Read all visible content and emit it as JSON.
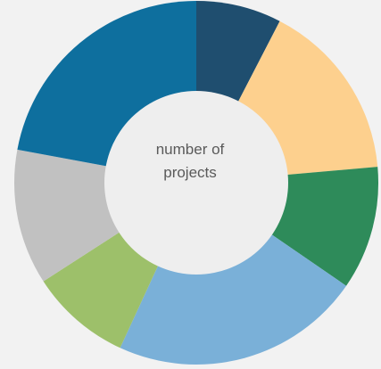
{
  "center_label": {
    "line1": "number of",
    "line2": "projects"
  },
  "colors": {
    "background": "#f2f2f2",
    "hole": "#eeeeee"
  },
  "chart_data": {
    "type": "pie",
    "variant": "donut",
    "start_angle_deg": 0,
    "direction": "clockwise",
    "slices": [
      {
        "value": 8.0,
        "color": "#1f4e6f"
      },
      {
        "value": 16.9,
        "color": "#fdd08e"
      },
      {
        "value": 11.6,
        "color": "#2e8b5a"
      },
      {
        "value": 23.5,
        "color": "#7ab0d8"
      },
      {
        "value": 9.5,
        "color": "#9dc06a"
      },
      {
        "value": 12.7,
        "color": "#c1c1c1"
      },
      {
        "value": 23.3,
        "color": "#0e6f9e"
      }
    ]
  }
}
